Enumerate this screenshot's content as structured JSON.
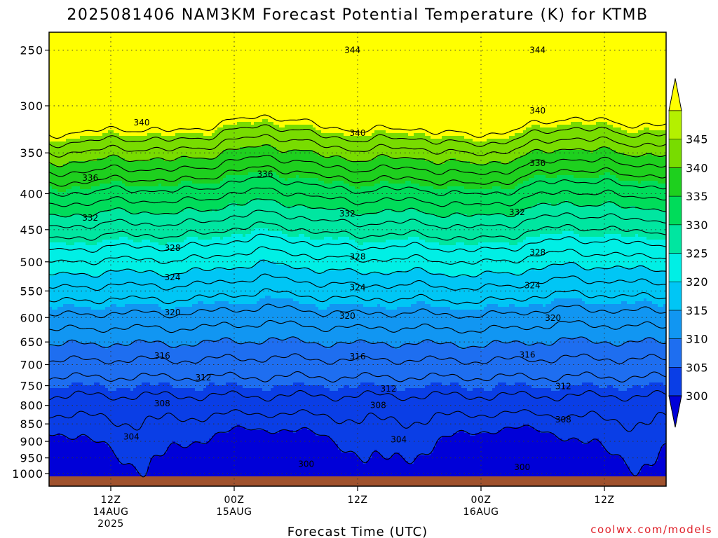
{
  "chart_data": {
    "type": "contour",
    "title": "2025081406 NAM3KM Forecast Potential Temperature (K) for KTMB",
    "xlabel": "Forecast Time (UTC)",
    "ylabel": "",
    "credit": "coolwx.com/models",
    "y_axis": {
      "scale": "log-pressure",
      "range": [
        1000,
        200
      ],
      "ticks": [
        "250",
        "300",
        "350",
        "400",
        "450",
        "500",
        "550",
        "600",
        "650",
        "700",
        "750",
        "800",
        "850",
        "900",
        "950",
        "1000"
      ]
    },
    "x_axis": {
      "ticks": [
        {
          "hour": 6,
          "lines": [
            "12Z",
            "14AUG",
            "2025"
          ]
        },
        {
          "hour": 18,
          "lines": [
            "00Z",
            "15AUG"
          ]
        },
        {
          "hour": 30,
          "lines": [
            "12Z"
          ]
        },
        {
          "hour": 42,
          "lines": [
            "00Z",
            "16AUG"
          ]
        },
        {
          "hour": 54,
          "lines": [
            "12Z"
          ]
        }
      ],
      "range": [
        0,
        60
      ]
    },
    "grid": true,
    "colorbar": {
      "placement": "right",
      "labels": [
        "300",
        "305",
        "310",
        "315",
        "320",
        "325",
        "330",
        "335",
        "340",
        "345"
      ],
      "colors": [
        "#0000d8",
        "#0a3ee6",
        "#1e6ef0",
        "#1196f2",
        "#00c6f5",
        "#00efe5",
        "#00e6a0",
        "#00dc5a",
        "#1ed01e",
        "#78dc00",
        "#b4f000",
        "#ffff00"
      ]
    },
    "contour_levels": [
      300,
      302,
      304,
      306,
      308,
      310,
      312,
      314,
      316,
      318,
      320,
      322,
      324,
      326,
      328,
      330,
      332,
      334,
      336,
      338,
      340,
      342,
      344,
      346
    ],
    "contour_labels": [
      {
        "text": "344",
        "hour": 29.5,
        "p": 250
      },
      {
        "text": "344",
        "hour": 47.5,
        "p": 250
      },
      {
        "text": "340",
        "hour": 9,
        "p": 317
      },
      {
        "text": "340",
        "hour": 30,
        "p": 328
      },
      {
        "text": "340",
        "hour": 47.5,
        "p": 305
      },
      {
        "text": "336",
        "hour": 4,
        "p": 380
      },
      {
        "text": "336",
        "hour": 21,
        "p": 375
      },
      {
        "text": "336",
        "hour": 47.5,
        "p": 362
      },
      {
        "text": "332",
        "hour": 4,
        "p": 433
      },
      {
        "text": "332",
        "hour": 29,
        "p": 427
      },
      {
        "text": "332",
        "hour": 45.5,
        "p": 425
      },
      {
        "text": "328",
        "hour": 12,
        "p": 478
      },
      {
        "text": "328",
        "hour": 30,
        "p": 492
      },
      {
        "text": "328",
        "hour": 47.5,
        "p": 485
      },
      {
        "text": "324",
        "hour": 12,
        "p": 526
      },
      {
        "text": "324",
        "hour": 30,
        "p": 544
      },
      {
        "text": "324",
        "hour": 47,
        "p": 540
      },
      {
        "text": "320",
        "hour": 12,
        "p": 590
      },
      {
        "text": "320",
        "hour": 29,
        "p": 597
      },
      {
        "text": "320",
        "hour": 49,
        "p": 601
      },
      {
        "text": "316",
        "hour": 11,
        "p": 680
      },
      {
        "text": "316",
        "hour": 30,
        "p": 682
      },
      {
        "text": "316",
        "hour": 46.5,
        "p": 678
      },
      {
        "text": "312",
        "hour": 15,
        "p": 730
      },
      {
        "text": "312",
        "hour": 33,
        "p": 758
      },
      {
        "text": "312",
        "hour": 50,
        "p": 752
      },
      {
        "text": "308",
        "hour": 11,
        "p": 795
      },
      {
        "text": "308",
        "hour": 32,
        "p": 800
      },
      {
        "text": "308",
        "hour": 50,
        "p": 838
      },
      {
        "text": "304",
        "hour": 8,
        "p": 887
      },
      {
        "text": "304",
        "hour": 34,
        "p": 895
      },
      {
        "text": "300",
        "hour": 25,
        "p": 970
      },
      {
        "text": "300",
        "hour": 46,
        "p": 980
      }
    ]
  }
}
